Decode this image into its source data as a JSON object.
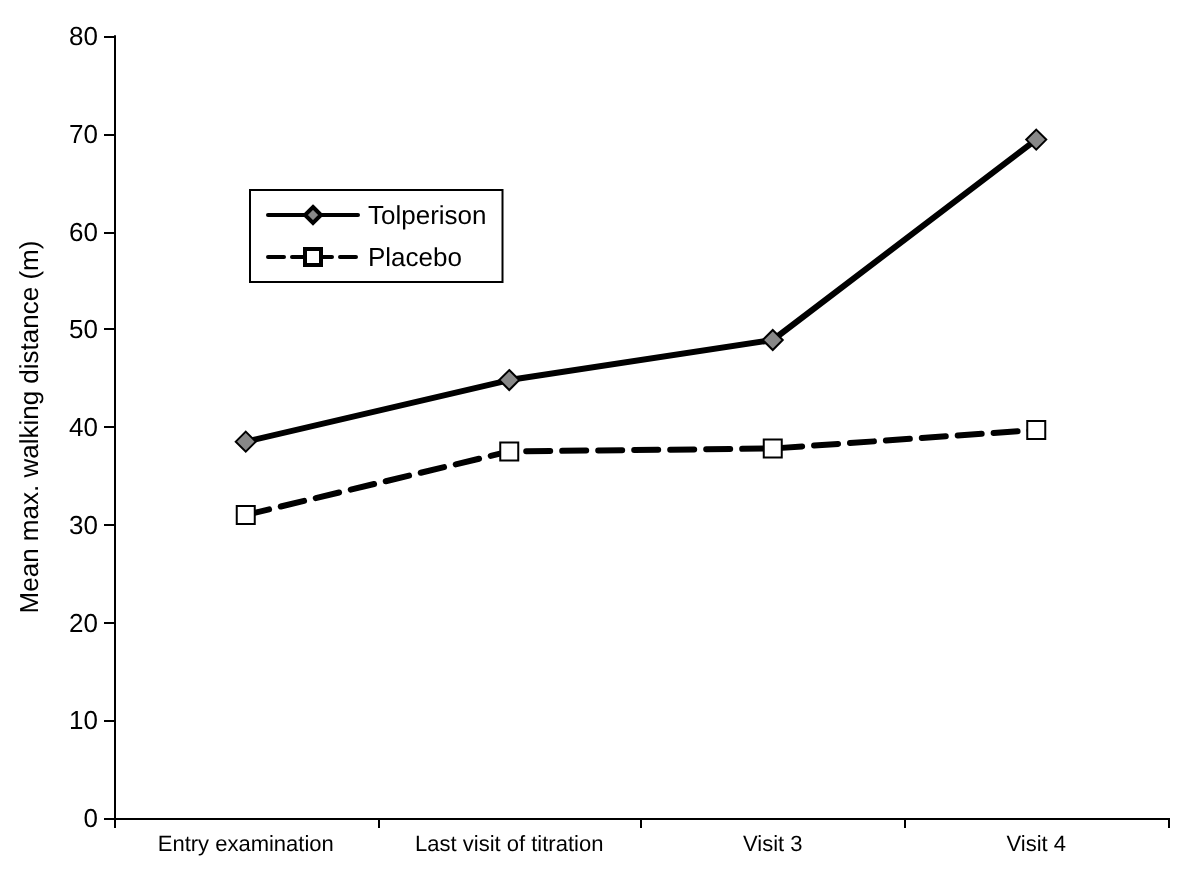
{
  "chart_data": {
    "type": "line",
    "ylabel": "Mean max. walking distance (m)",
    "categories": [
      "Entry examination",
      "Last visit of titration",
      "Visit 3",
      "Visit 4"
    ],
    "series": [
      {
        "name": "Tolperison",
        "color": "#000000",
        "marker": "diamond",
        "line_style": "solid",
        "values": [
          38.5,
          44.8,
          48.9,
          69.4
        ]
      },
      {
        "name": "Placebo",
        "color": "#000000",
        "marker": "square",
        "line_style": "dashed",
        "values": [
          31,
          37.5,
          37.8,
          39.7
        ]
      }
    ],
    "ylim": [
      0,
      80
    ],
    "yticks": [
      0,
      10,
      20,
      30,
      40,
      50,
      60,
      70,
      80
    ],
    "grid": false,
    "legend": "top left"
  }
}
